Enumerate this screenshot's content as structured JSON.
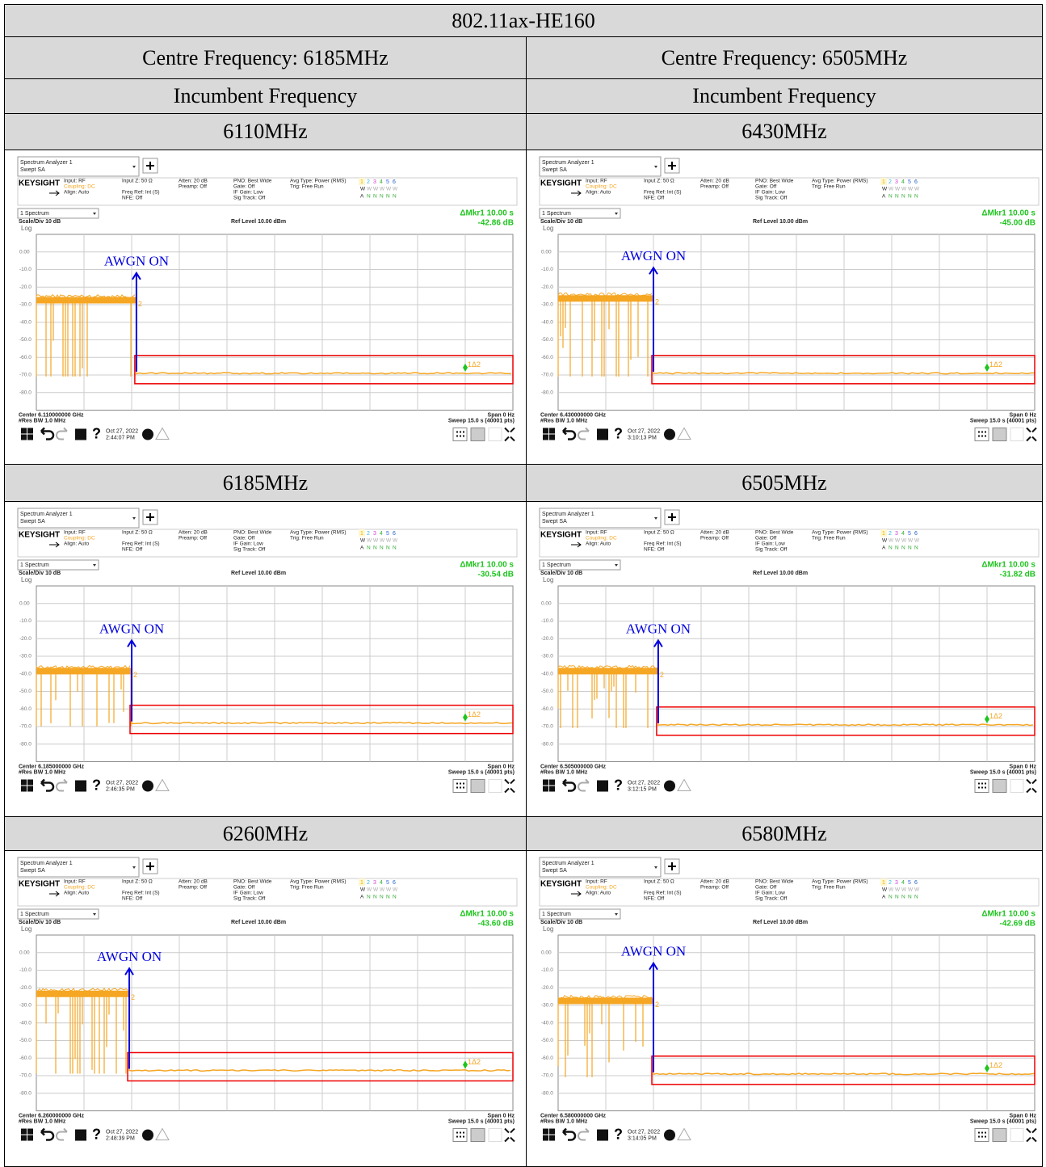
{
  "table": {
    "title": "802.11ax-HE160",
    "columns": [
      {
        "centre_frequency": "Centre Frequency: 6185MHz",
        "incumbent_heading": "Incumbent Frequency"
      },
      {
        "centre_frequency": "Centre Frequency: 6505MHz",
        "incumbent_heading": "Incumbent Frequency"
      }
    ],
    "rows": [
      {
        "frequencies": [
          "6110MHz",
          "6430MHz"
        ],
        "screenshots": [
          {
            "center": "Center 6.110000000 GHz",
            "delta": "-42.86 dB",
            "date": "Oct 27, 2022",
            "time": "2:44:07 PM"
          },
          {
            "center": "Center 6.430000000 GHz",
            "delta": "-45.00 dB",
            "date": "Oct 27, 2022",
            "time": "3:10:13 PM"
          }
        ]
      },
      {
        "frequencies": [
          "6185MHz",
          "6505MHz"
        ],
        "screenshots": [
          {
            "center": "Center 6.185000000 GHz",
            "delta": "-30.54 dB",
            "date": "Oct 27, 2022",
            "time": "2:46:35 PM"
          },
          {
            "center": "Center 6.505000000 GHz",
            "delta": "-31.82 dB",
            "date": "Oct 27, 2022",
            "time": "3:12:15 PM"
          }
        ]
      },
      {
        "frequencies": [
          "6260MHz",
          "6580MHz"
        ],
        "screenshots": [
          {
            "center": "Center 6.260000000 GHz",
            "delta": "-43.60 dB",
            "date": "Oct 27, 2022",
            "time": "2:48:39 PM"
          },
          {
            "center": "Center 6.580000000 GHz",
            "delta": "-42.69 dB",
            "date": "Oct 27, 2022",
            "time": "3:14:05 PM"
          }
        ]
      }
    ]
  },
  "analyzer": {
    "app": "Spectrum Analyzer 1",
    "mode": "Swept SA",
    "brand": "KEYSIGHT",
    "input": "Input: RF",
    "coupling": "Coupling: DC",
    "align": "Align: Auto",
    "input_z": "Input Z: 50 Ω",
    "freq_ref": "Freq Ref: Int (S)",
    "nfe": "NFE: Off",
    "atten": "Atten: 20 dB",
    "preamp": "Preamp: Off",
    "pno": "PNO: Best Wide",
    "gate": "Gate: Off",
    "if_gain": "IF Gain: Low",
    "sig_track": "Sig Track: Off",
    "avg_type": "Avg Type: Power (RMS)",
    "trig": "Trig: Free Run",
    "trace_numbers": [
      "1",
      "2",
      "3",
      "4",
      "5",
      "6"
    ],
    "trace_types": [
      "W",
      "W",
      "W",
      "W",
      "W",
      "W"
    ],
    "detectors": [
      "A",
      "N",
      "N",
      "N",
      "N",
      "N"
    ],
    "window": "1 Spectrum",
    "marker": "ΔMkr1  10.00 s",
    "scale": "Scale/Div 10 dB",
    "ref_level": "Ref Level 10.00 dBm",
    "log": "Log",
    "y_labels": [
      "0.00",
      "-10.0",
      "-20.0",
      "-30.0",
      "-40.0",
      "-50.0",
      "-60.0",
      "-70.0",
      "-80.0"
    ],
    "res_bw": "#Res BW 1.0 MHz",
    "span": "Span 0 Hz",
    "sweep": "Sweep 15.0 s (40001 pts)",
    "help": "?",
    "annotation": "AWGN ON",
    "marker_label": "1Δ2",
    "marker2_label": "2"
  }
}
